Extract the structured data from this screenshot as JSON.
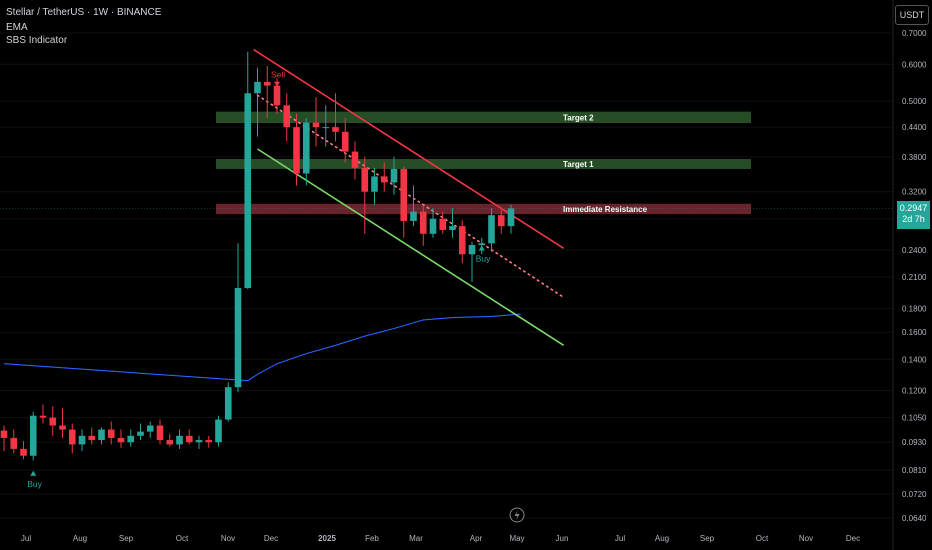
{
  "header": {
    "title": "Stellar / TetherUS · 1W · BINANCE",
    "ema_label": "EMA",
    "indicator_label": "SBS Indicator"
  },
  "currency_button": "USDT",
  "price_badge": {
    "price": "0.2947",
    "countdown": "2d 7h"
  },
  "chart_data": {
    "type": "candlestick",
    "y_scale": "log",
    "ylim": [
      0.062,
      0.74
    ],
    "y_ticks": [
      "0.7000",
      "0.6000",
      "0.5000",
      "0.4400",
      "0.3800",
      "0.3200",
      "0.2800",
      "0.2400",
      "0.2100",
      "0.1800",
      "0.1600",
      "0.1400",
      "0.1200",
      "0.1050",
      "0.0930",
      "0.0810",
      "0.0720",
      "0.0640"
    ],
    "x_ticks": [
      "Jul",
      "Aug",
      "Sep",
      "Oct",
      "Nov",
      "Dec",
      "2025",
      "Feb",
      "Mar",
      "Apr",
      "May",
      "Jun",
      "Jul",
      "Aug",
      "Sep",
      "Oct",
      "Nov",
      "Dec"
    ],
    "x_tick_bold": "2025",
    "candles": [
      {
        "o": 0.0985,
        "h": 0.101,
        "l": 0.089,
        "c": 0.095
      },
      {
        "o": 0.095,
        "h": 0.099,
        "l": 0.088,
        "c": 0.09
      },
      {
        "o": 0.09,
        "h": 0.0935,
        "l": 0.0855,
        "c": 0.087
      },
      {
        "o": 0.087,
        "h": 0.108,
        "l": 0.085,
        "c": 0.106
      },
      {
        "o": 0.106,
        "h": 0.112,
        "l": 0.102,
        "c": 0.105
      },
      {
        "o": 0.105,
        "h": 0.111,
        "l": 0.096,
        "c": 0.101
      },
      {
        "o": 0.101,
        "h": 0.11,
        "l": 0.095,
        "c": 0.099
      },
      {
        "o": 0.099,
        "h": 0.102,
        "l": 0.088,
        "c": 0.092
      },
      {
        "o": 0.092,
        "h": 0.099,
        "l": 0.089,
        "c": 0.096
      },
      {
        "o": 0.096,
        "h": 0.1,
        "l": 0.092,
        "c": 0.094
      },
      {
        "o": 0.094,
        "h": 0.1,
        "l": 0.092,
        "c": 0.099
      },
      {
        "o": 0.099,
        "h": 0.103,
        "l": 0.092,
        "c": 0.095
      },
      {
        "o": 0.095,
        "h": 0.099,
        "l": 0.0905,
        "c": 0.093
      },
      {
        "o": 0.093,
        "h": 0.099,
        "l": 0.091,
        "c": 0.096
      },
      {
        "o": 0.096,
        "h": 0.102,
        "l": 0.094,
        "c": 0.098
      },
      {
        "o": 0.098,
        "h": 0.103,
        "l": 0.095,
        "c": 0.101
      },
      {
        "o": 0.101,
        "h": 0.104,
        "l": 0.092,
        "c": 0.094
      },
      {
        "o": 0.094,
        "h": 0.097,
        "l": 0.091,
        "c": 0.092
      },
      {
        "o": 0.092,
        "h": 0.099,
        "l": 0.09,
        "c": 0.096
      },
      {
        "o": 0.096,
        "h": 0.099,
        "l": 0.092,
        "c": 0.093
      },
      {
        "o": 0.093,
        "h": 0.096,
        "l": 0.09,
        "c": 0.094
      },
      {
        "o": 0.094,
        "h": 0.096,
        "l": 0.0905,
        "c": 0.093
      },
      {
        "o": 0.093,
        "h": 0.106,
        "l": 0.091,
        "c": 0.104
      },
      {
        "o": 0.104,
        "h": 0.125,
        "l": 0.103,
        "c": 0.122
      },
      {
        "o": 0.122,
        "h": 0.248,
        "l": 0.119,
        "c": 0.199
      },
      {
        "o": 0.199,
        "h": 0.638,
        "l": 0.198,
        "c": 0.52
      },
      {
        "o": 0.52,
        "h": 0.59,
        "l": 0.42,
        "c": 0.55
      },
      {
        "o": 0.55,
        "h": 0.595,
        "l": 0.46,
        "c": 0.54
      },
      {
        "o": 0.54,
        "h": 0.56,
        "l": 0.47,
        "c": 0.49
      },
      {
        "o": 0.49,
        "h": 0.52,
        "l": 0.41,
        "c": 0.44
      },
      {
        "o": 0.44,
        "h": 0.47,
        "l": 0.33,
        "c": 0.35
      },
      {
        "o": 0.35,
        "h": 0.46,
        "l": 0.33,
        "c": 0.45
      },
      {
        "o": 0.45,
        "h": 0.51,
        "l": 0.4,
        "c": 0.44
      },
      {
        "o": 0.44,
        "h": 0.49,
        "l": 0.4,
        "c": 0.44
      },
      {
        "o": 0.44,
        "h": 0.52,
        "l": 0.41,
        "c": 0.43
      },
      {
        "o": 0.43,
        "h": 0.46,
        "l": 0.37,
        "c": 0.39
      },
      {
        "o": 0.39,
        "h": 0.41,
        "l": 0.34,
        "c": 0.36
      },
      {
        "o": 0.36,
        "h": 0.38,
        "l": 0.26,
        "c": 0.32
      },
      {
        "o": 0.32,
        "h": 0.36,
        "l": 0.3,
        "c": 0.345
      },
      {
        "o": 0.345,
        "h": 0.37,
        "l": 0.32,
        "c": 0.335
      },
      {
        "o": 0.335,
        "h": 0.38,
        "l": 0.315,
        "c": 0.358
      },
      {
        "o": 0.358,
        "h": 0.362,
        "l": 0.255,
        "c": 0.277
      },
      {
        "o": 0.277,
        "h": 0.33,
        "l": 0.27,
        "c": 0.29
      },
      {
        "o": 0.29,
        "h": 0.3,
        "l": 0.245,
        "c": 0.26
      },
      {
        "o": 0.26,
        "h": 0.295,
        "l": 0.255,
        "c": 0.28
      },
      {
        "o": 0.28,
        "h": 0.29,
        "l": 0.26,
        "c": 0.265
      },
      {
        "o": 0.265,
        "h": 0.295,
        "l": 0.255,
        "c": 0.27
      },
      {
        "o": 0.27,
        "h": 0.278,
        "l": 0.225,
        "c": 0.235
      },
      {
        "o": 0.235,
        "h": 0.25,
        "l": 0.205,
        "c": 0.246
      },
      {
        "o": 0.246,
        "h": 0.255,
        "l": 0.235,
        "c": 0.248
      },
      {
        "o": 0.248,
        "h": 0.295,
        "l": 0.238,
        "c": 0.285
      },
      {
        "o": 0.285,
        "h": 0.293,
        "l": 0.26,
        "c": 0.27
      },
      {
        "o": 0.27,
        "h": 0.3,
        "l": 0.26,
        "c": 0.2947
      }
    ],
    "ema": [
      [
        0,
        0.137
      ],
      [
        25,
        0.126
      ],
      [
        26,
        0.13
      ],
      [
        28,
        0.137
      ],
      [
        31,
        0.144
      ],
      [
        34,
        0.15
      ],
      [
        37,
        0.157
      ],
      [
        40,
        0.163
      ],
      [
        43,
        0.17
      ],
      [
        46,
        0.172
      ],
      [
        50,
        0.173
      ],
      [
        53,
        0.175
      ]
    ],
    "zones": [
      {
        "label": "Target 2",
        "low": 0.449,
        "high": 0.475,
        "color": "#2d5a2d"
      },
      {
        "label": "Target 1",
        "low": 0.358,
        "high": 0.376,
        "color": "#2d5a2d"
      },
      {
        "label": "Immediate Resistance",
        "low": 0.2865,
        "high": 0.3015,
        "color": "#7a2a32"
      }
    ],
    "trendlines": [
      {
        "name": "resistance",
        "color": "#f23645",
        "from": [
          25.6,
          0.645
        ],
        "to": [
          57.4,
          0.242
        ]
      },
      {
        "name": "support",
        "color": "#7bd96a",
        "from": [
          26.0,
          0.395
        ],
        "to": [
          57.4,
          0.15
        ]
      },
      {
        "name": "mid",
        "color": "#ff7f7f",
        "from": [
          26.0,
          0.515
        ],
        "to": [
          57.4,
          0.19
        ],
        "dotted": true
      }
    ],
    "signals": [
      {
        "type": "sell",
        "label": "Sell",
        "index": 28,
        "price": 0.545
      },
      {
        "type": "buy",
        "label": "Buy",
        "index": 3,
        "price": 0.08
      },
      {
        "type": "buy",
        "label": "Buy",
        "index": 49,
        "price": 0.243
      }
    ],
    "current_price": 0.2947
  },
  "colors": {
    "up": "#26a69a",
    "down": "#f23645",
    "ema": "#2962ff",
    "grid": "#1a1a1a",
    "axis_text": "#b2b5be"
  }
}
